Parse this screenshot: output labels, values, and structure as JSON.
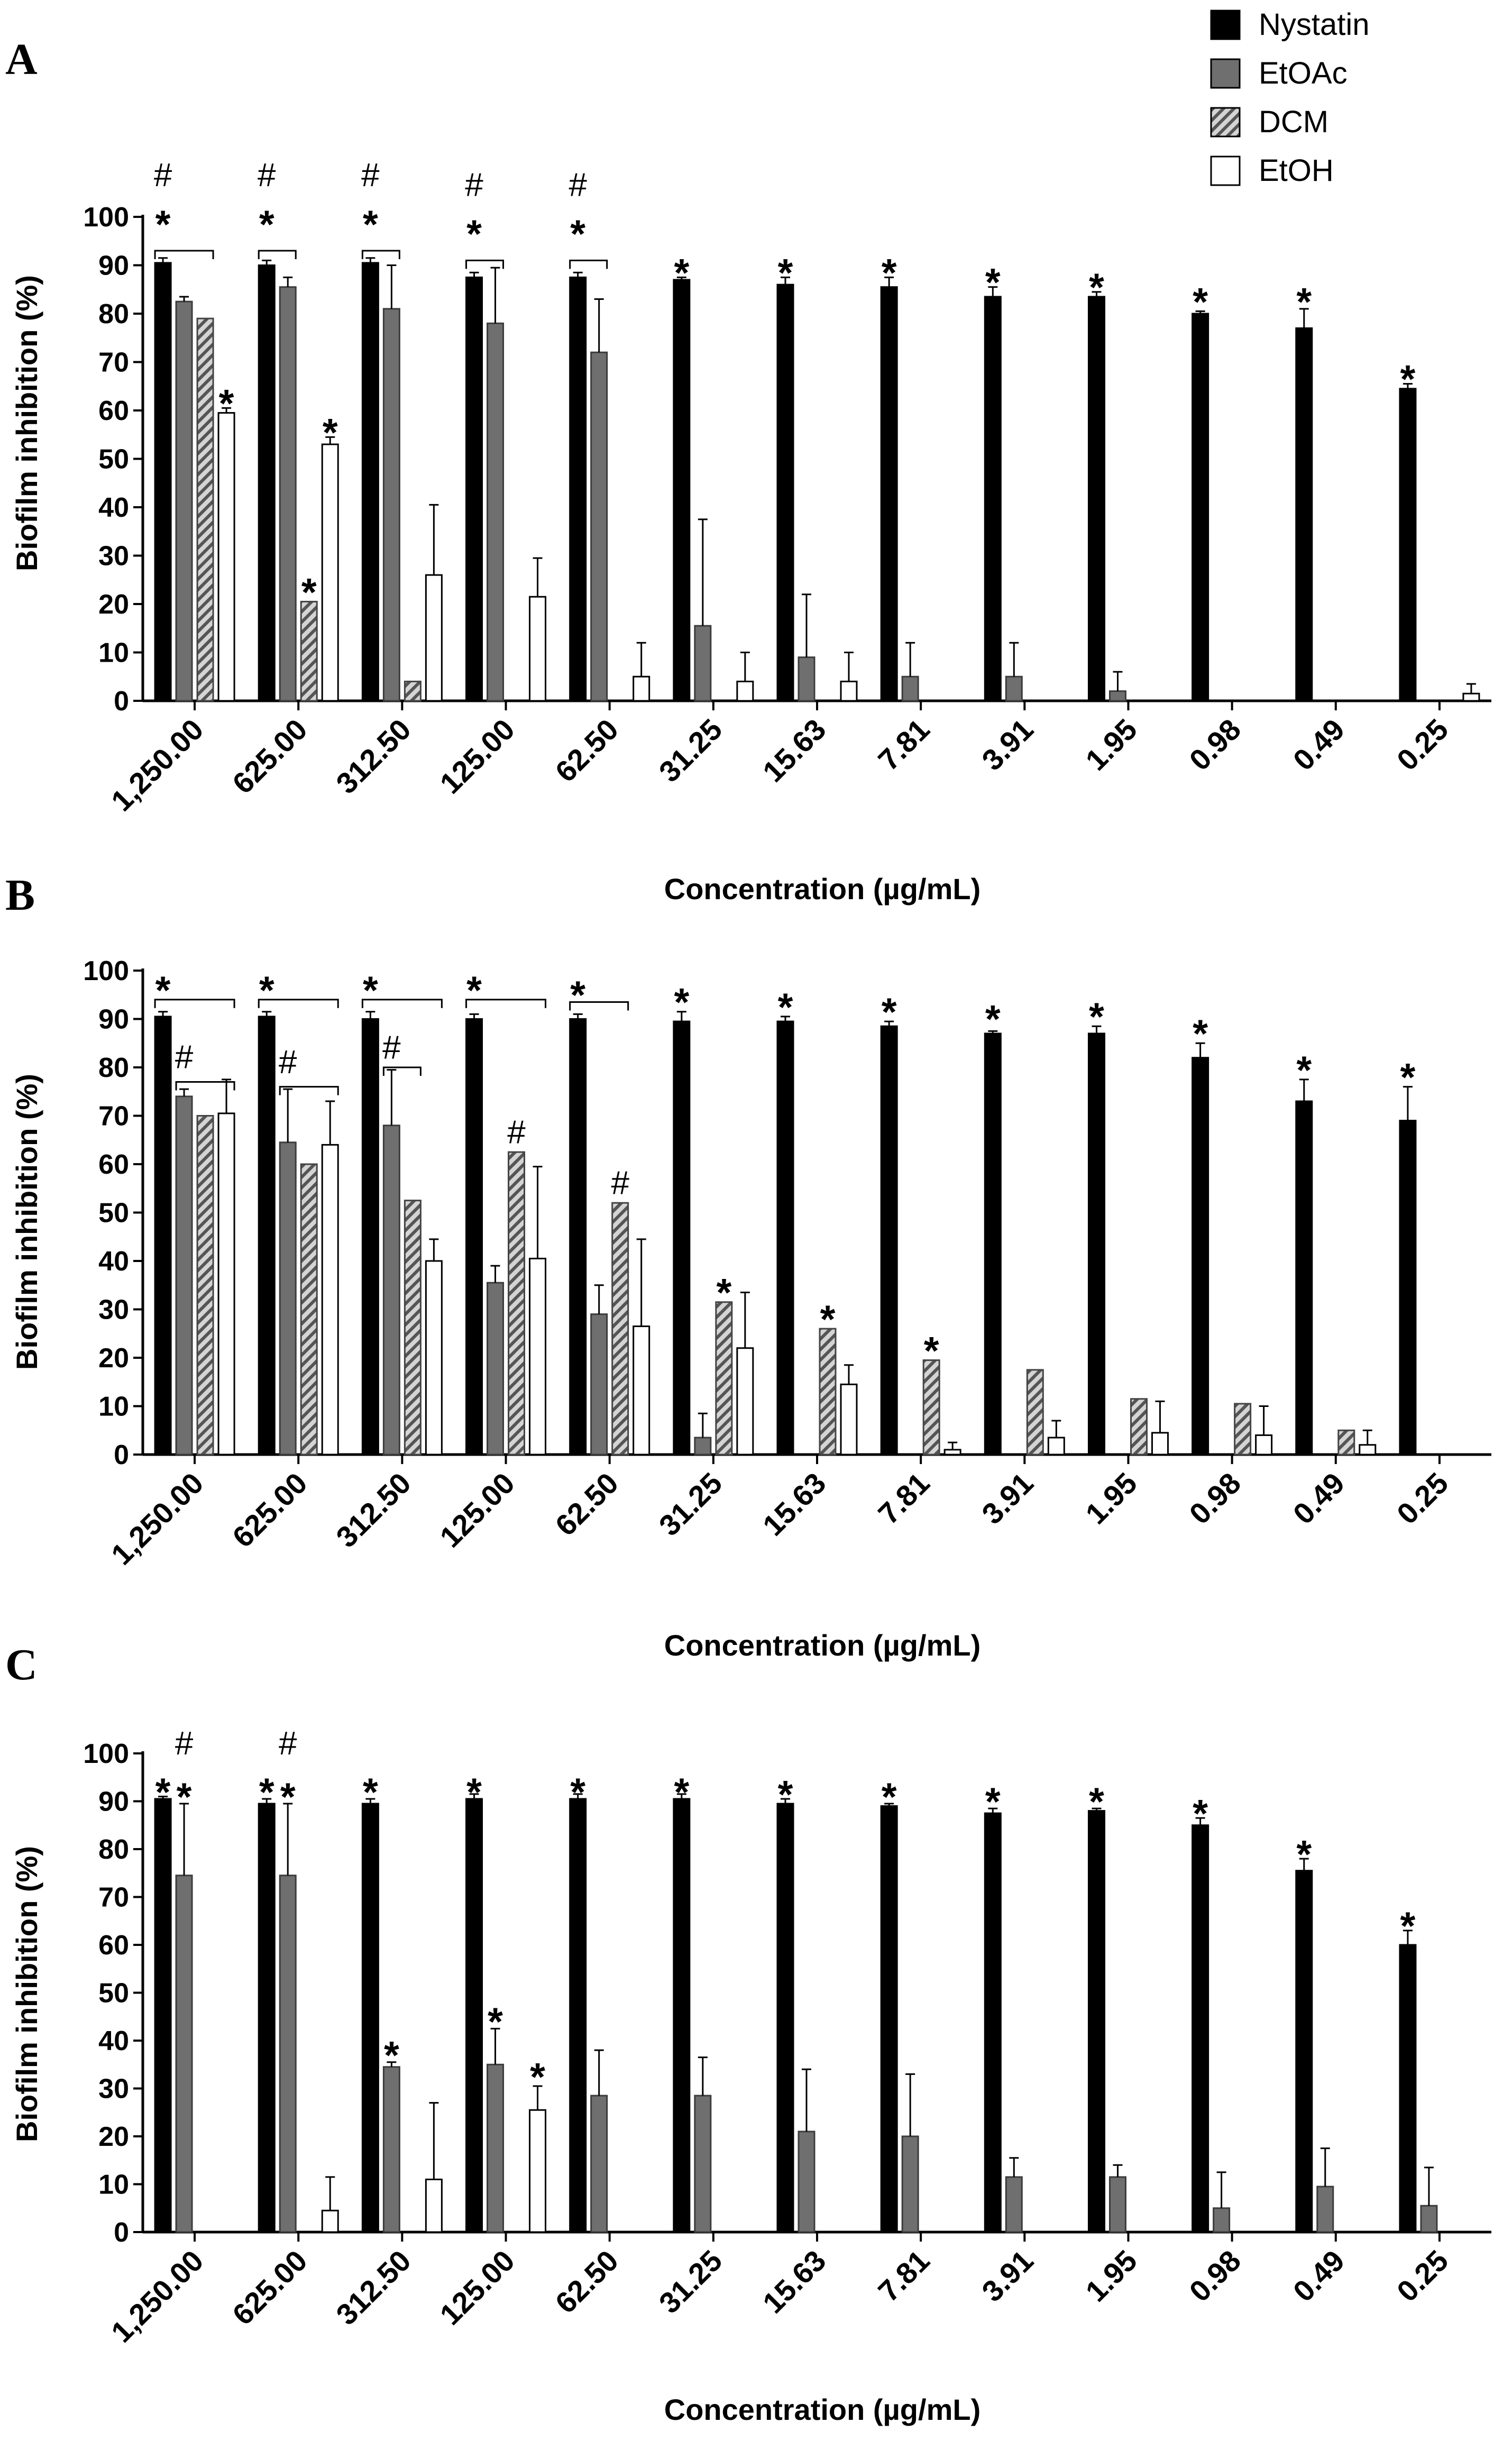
{
  "legend": [
    {
      "name": "Nystatin",
      "fill": "solid",
      "color": "#000000"
    },
    {
      "name": "EtOAc",
      "fill": "solid",
      "color": "#707070"
    },
    {
      "name": "DCM",
      "fill": "hatch",
      "color": "#5a5a5a"
    },
    {
      "name": "EtOH",
      "fill": "open",
      "color": "#ffffff"
    }
  ],
  "chart_data": [
    {
      "panel": "A",
      "type": "bar",
      "ylabel": "Biofilm inhibition (%)",
      "xlabel": "Concentration (µg/mL)",
      "ylim": [
        0,
        100
      ],
      "yticks": [
        0,
        10,
        20,
        30,
        40,
        50,
        60,
        70,
        80,
        90,
        100
      ],
      "categories": [
        "1,250.00",
        "625.00",
        "312.50",
        "125.00",
        "62.50",
        "31.25",
        "15.63",
        "7.81",
        "3.91",
        "1.95",
        "0.98",
        "0.49",
        "0.25"
      ],
      "series": [
        {
          "name": "Nystatin",
          "values": [
            90.5,
            90,
            90.5,
            87.5,
            87.5,
            87,
            86,
            85.5,
            83.5,
            83.5,
            80,
            77,
            64.5
          ],
          "errors": [
            1,
            1,
            1,
            1,
            1,
            0.5,
            1.5,
            2,
            2,
            1,
            0.5,
            4,
            1
          ]
        },
        {
          "name": "EtOAc",
          "values": [
            82.5,
            85.5,
            81,
            78,
            72,
            15.5,
            9,
            5,
            5,
            2,
            0,
            0,
            0
          ],
          "errors": [
            1,
            2,
            9,
            11.5,
            11,
            22,
            13,
            7,
            7,
            4,
            0,
            0,
            0
          ]
        },
        {
          "name": "DCM",
          "values": [
            79,
            20.5,
            4,
            0,
            0,
            0,
            0,
            0,
            0,
            0,
            0,
            0,
            0
          ],
          "errors": [
            0,
            0,
            0,
            0,
            0,
            0,
            0,
            0,
            0,
            0,
            0,
            0,
            0
          ]
        },
        {
          "name": "EtOH",
          "values": [
            59.5,
            53,
            26,
            21.5,
            5,
            4,
            4,
            0,
            0,
            0,
            0,
            0,
            1.5
          ],
          "errors": [
            1,
            1.5,
            14.5,
            8,
            7,
            6,
            6,
            0,
            0,
            0,
            0,
            0,
            2
          ]
        }
      ],
      "annotations": [
        {
          "text": "#",
          "category": 0,
          "series": "Nystatin",
          "level": 108.5
        },
        {
          "text": "*",
          "category": 0,
          "series": "Nystatin",
          "level": 100.5
        },
        {
          "text": "*",
          "category": 0,
          "series": "EtOH",
          "level": 63.5
        },
        {
          "text": "#",
          "category": 1,
          "series": "Nystatin",
          "level": 108.5
        },
        {
          "text": "*",
          "category": 1,
          "series": "Nystatin",
          "level": 100.5
        },
        {
          "text": "*",
          "category": 1,
          "series": "DCM",
          "level": 24.5
        },
        {
          "text": "*",
          "category": 1,
          "series": "EtOH",
          "level": 57.5
        },
        {
          "text": "#",
          "category": 2,
          "series": "Nystatin",
          "level": 108.5
        },
        {
          "text": "*",
          "category": 2,
          "series": "Nystatin",
          "level": 100.5
        },
        {
          "text": "#",
          "category": 3,
          "series": "Nystatin",
          "level": 106.5
        },
        {
          "text": "*",
          "category": 3,
          "series": "Nystatin",
          "level": 98.5
        },
        {
          "text": "#",
          "category": 4,
          "series": "Nystatin",
          "level": 106.5
        },
        {
          "text": "*",
          "category": 4,
          "series": "Nystatin",
          "level": 98.5
        },
        {
          "text": "*",
          "category": 5,
          "series": "Nystatin",
          "level": 90.5
        },
        {
          "text": "*",
          "category": 6,
          "series": "Nystatin",
          "level": 90.5
        },
        {
          "text": "*",
          "category": 7,
          "series": "Nystatin",
          "level": 90.5
        },
        {
          "text": "*",
          "category": 8,
          "series": "Nystatin",
          "level": 88.5
        },
        {
          "text": "*",
          "category": 9,
          "series": "Nystatin",
          "level": 87.5
        },
        {
          "text": "*",
          "category": 10,
          "series": "Nystatin",
          "level": 84.5
        },
        {
          "text": "*",
          "category": 11,
          "series": "Nystatin",
          "level": 84.5
        },
        {
          "text": "*",
          "category": 12,
          "series": "Nystatin",
          "level": 68.5
        }
      ],
      "brackets": [
        {
          "category": 0,
          "from": "Nystatin",
          "to": "DCM",
          "level": 93
        },
        {
          "category": 1,
          "from": "Nystatin",
          "to": "EtOAc",
          "level": 93
        },
        {
          "category": 2,
          "from": "Nystatin",
          "to": "EtOAc",
          "level": 93
        },
        {
          "category": 3,
          "from": "Nystatin",
          "to": "EtOAc",
          "level": 91
        },
        {
          "category": 4,
          "from": "Nystatin",
          "to": "EtOAc",
          "level": 91
        }
      ]
    },
    {
      "panel": "B",
      "type": "bar",
      "ylabel": "Biofilm inhibition (%)",
      "xlabel": "Concentration (µg/mL)",
      "ylim": [
        0,
        100
      ],
      "yticks": [
        0,
        10,
        20,
        30,
        40,
        50,
        60,
        70,
        80,
        90,
        100
      ],
      "categories": [
        "1,250.00",
        "625.00",
        "312.50",
        "125.00",
        "62.50",
        "31.25",
        "15.63",
        "7.81",
        "3.91",
        "1.95",
        "0.98",
        "0.49",
        "0.25"
      ],
      "series": [
        {
          "name": "Nystatin",
          "values": [
            90.5,
            90.5,
            90,
            90,
            90,
            89.5,
            89.5,
            88.5,
            87,
            87,
            82,
            73,
            69
          ],
          "errors": [
            1,
            1,
            1.5,
            1,
            1,
            2,
            1,
            1,
            0.5,
            1.5,
            3,
            4.5,
            7
          ]
        },
        {
          "name": "EtOAc",
          "values": [
            74,
            64.5,
            68,
            35.5,
            29,
            3.5,
            0,
            0,
            0,
            0,
            0,
            0,
            0
          ],
          "errors": [
            1.5,
            11,
            11.5,
            3.5,
            6,
            5,
            0,
            0,
            0,
            0,
            0,
            0,
            0
          ]
        },
        {
          "name": "DCM",
          "values": [
            70,
            60,
            52.5,
            62.5,
            52,
            31.5,
            26,
            19.5,
            17.5,
            11.5,
            10.5,
            5,
            0
          ],
          "errors": [
            0,
            0,
            0,
            0,
            0,
            0,
            0,
            0,
            0,
            0,
            0,
            0,
            0
          ]
        },
        {
          "name": "EtOH",
          "values": [
            70.5,
            64,
            40,
            40.5,
            26.5,
            22,
            14.5,
            1,
            3.5,
            4.5,
            4,
            2,
            0
          ],
          "errors": [
            7,
            9,
            4.5,
            19,
            18,
            11.5,
            4,
            1.5,
            3.5,
            6.5,
            6,
            3,
            0
          ]
        }
      ],
      "annotations": [
        {
          "text": "*",
          "category": 0,
          "series": "Nystatin",
          "level": 98
        },
        {
          "text": "#",
          "category": 0,
          "series": "EtOAc",
          "level": 82
        },
        {
          "text": "*",
          "category": 1,
          "series": "Nystatin",
          "level": 98
        },
        {
          "text": "#",
          "category": 1,
          "series": "EtOAc",
          "level": 81
        },
        {
          "text": "*",
          "category": 2,
          "series": "Nystatin",
          "level": 98
        },
        {
          "text": "#",
          "category": 2,
          "series": "EtOAc",
          "level": 84
        },
        {
          "text": "*",
          "category": 3,
          "series": "Nystatin",
          "level": 98
        },
        {
          "text": "#",
          "category": 3,
          "series": "DCM",
          "level": 66.5
        },
        {
          "text": "*",
          "category": 4,
          "series": "Nystatin",
          "level": 97
        },
        {
          "text": "#",
          "category": 4,
          "series": "DCM",
          "level": 56
        },
        {
          "text": "*",
          "category": 5,
          "series": "Nystatin",
          "level": 95.5
        },
        {
          "text": "*",
          "category": 5,
          "series": "DCM",
          "level": 35.5
        },
        {
          "text": "*",
          "category": 6,
          "series": "Nystatin",
          "level": 94.5
        },
        {
          "text": "*",
          "category": 6,
          "series": "DCM",
          "level": 30
        },
        {
          "text": "*",
          "category": 7,
          "series": "Nystatin",
          "level": 93.5
        },
        {
          "text": "*",
          "category": 7,
          "series": "DCM",
          "level": 23.5
        },
        {
          "text": "*",
          "category": 8,
          "series": "Nystatin",
          "level": 92
        },
        {
          "text": "*",
          "category": 9,
          "series": "Nystatin",
          "level": 92.5
        },
        {
          "text": "*",
          "category": 10,
          "series": "Nystatin",
          "level": 89
        },
        {
          "text": "*",
          "category": 11,
          "series": "Nystatin",
          "level": 81.5
        },
        {
          "text": "*",
          "category": 12,
          "series": "Nystatin",
          "level": 80
        }
      ],
      "brackets": [
        {
          "category": 0,
          "from": "Nystatin",
          "to": "EtOH",
          "level": 94
        },
        {
          "category": 1,
          "from": "Nystatin",
          "to": "EtOH",
          "level": 94
        },
        {
          "category": 2,
          "from": "Nystatin",
          "to": "EtOH",
          "level": 94
        },
        {
          "category": 3,
          "from": "Nystatin",
          "to": "EtOH",
          "level": 94
        },
        {
          "category": 4,
          "from": "Nystatin",
          "to": "DCM",
          "level": 93.5
        },
        {
          "category": 0,
          "from": "EtOAc",
          "to": "EtOH",
          "level": 77
        },
        {
          "category": 1,
          "from": "EtOAc",
          "to": "EtOH",
          "level": 76
        },
        {
          "category": 2,
          "from": "EtOAc",
          "to": "DCM",
          "level": 80
        }
      ]
    },
    {
      "panel": "C",
      "type": "bar",
      "ylabel": "Biofilm inhibition (%)",
      "xlabel": "Concentration (µg/mL)",
      "ylim": [
        0,
        100
      ],
      "yticks": [
        0,
        10,
        20,
        30,
        40,
        50,
        60,
        70,
        80,
        90,
        100
      ],
      "categories": [
        "1,250.00",
        "625.00",
        "312.50",
        "125.00",
        "62.50",
        "31.25",
        "15.63",
        "7.81",
        "3.91",
        "1.95",
        "0.98",
        "0.49",
        "0.25"
      ],
      "series": [
        {
          "name": "Nystatin",
          "values": [
            90.5,
            89.5,
            89.5,
            90.5,
            90.5,
            90.5,
            89.5,
            89,
            87.5,
            88,
            85,
            75.5,
            60
          ],
          "errors": [
            0.5,
            1,
            1,
            1,
            1,
            1,
            1,
            0.5,
            1,
            0.5,
            1.5,
            2.5,
            3
          ]
        },
        {
          "name": "EtOAc",
          "values": [
            74.5,
            74.5,
            34.5,
            35,
            28.5,
            28.5,
            21,
            20,
            11.5,
            11.5,
            5,
            9.5,
            5.5
          ],
          "errors": [
            15,
            15,
            1,
            7.5,
            9.5,
            8,
            13,
            13,
            4,
            2.5,
            7.5,
            8,
            8
          ]
        },
        {
          "name": "DCM",
          "values": [
            0,
            0,
            0,
            0,
            0,
            0,
            0,
            0,
            0,
            0,
            0,
            0,
            0
          ],
          "errors": [
            0,
            0,
            0,
            0,
            0,
            0,
            0,
            0,
            0,
            0,
            0,
            0,
            0
          ]
        },
        {
          "name": "EtOH",
          "values": [
            0,
            4.5,
            11,
            25.5,
            0,
            0,
            0,
            0,
            0,
            0,
            0,
            0,
            0
          ],
          "errors": [
            0,
            7,
            16,
            5,
            0,
            0,
            0,
            0,
            0,
            0,
            0,
            0,
            0
          ]
        }
      ],
      "annotations": [
        {
          "text": "*",
          "category": 0,
          "series": "Nystatin",
          "level": 94
        },
        {
          "text": "#",
          "category": 0,
          "series": "EtOAc",
          "level": 102
        },
        {
          "text": "*",
          "category": 0,
          "series": "EtOAc",
          "level": 93
        },
        {
          "text": "*",
          "category": 1,
          "series": "Nystatin",
          "level": 94
        },
        {
          "text": "#",
          "category": 1,
          "series": "EtOAc",
          "level": 102
        },
        {
          "text": "*",
          "category": 1,
          "series": "EtOAc",
          "level": 93
        },
        {
          "text": "*",
          "category": 2,
          "series": "Nystatin",
          "level": 94
        },
        {
          "text": "*",
          "category": 2,
          "series": "EtOAc",
          "level": 39
        },
        {
          "text": "*",
          "category": 3,
          "series": "Nystatin",
          "level": 94
        },
        {
          "text": "*",
          "category": 3,
          "series": "EtOAc",
          "level": 46
        },
        {
          "text": "*",
          "category": 3,
          "series": "EtOH",
          "level": 34.5
        },
        {
          "text": "*",
          "category": 4,
          "series": "Nystatin",
          "level": 94
        },
        {
          "text": "*",
          "category": 5,
          "series": "Nystatin",
          "level": 94
        },
        {
          "text": "*",
          "category": 6,
          "series": "Nystatin",
          "level": 93.5
        },
        {
          "text": "*",
          "category": 7,
          "series": "Nystatin",
          "level": 93
        },
        {
          "text": "*",
          "category": 8,
          "series": "Nystatin",
          "level": 92
        },
        {
          "text": "*",
          "category": 9,
          "series": "Nystatin",
          "level": 92
        },
        {
          "text": "*",
          "category": 10,
          "series": "Nystatin",
          "level": 89.5
        },
        {
          "text": "*",
          "category": 11,
          "series": "Nystatin",
          "level": 81
        },
        {
          "text": "*",
          "category": 12,
          "series": "Nystatin",
          "level": 66
        }
      ],
      "brackets": []
    }
  ]
}
